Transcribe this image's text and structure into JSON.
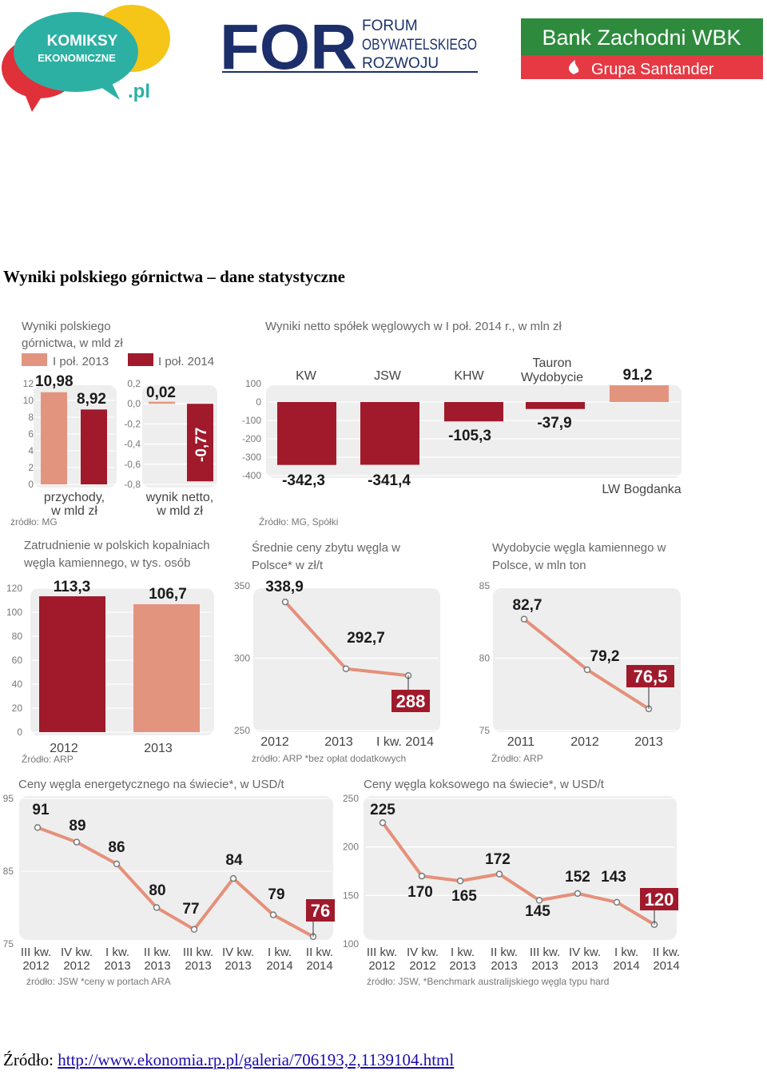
{
  "logos": {
    "komiksy": {
      "line1": "KOMIKSY",
      "line2": "EKONOMICZNE",
      "suffix": ".pl"
    },
    "forum": {
      "mark": "FOR",
      "line1": "FORUM",
      "line2": "OBYWATELSKIEGO",
      "line3": "ROZWOJU"
    },
    "bank": {
      "name": "Bank Zachodni WBK",
      "sub": "Grupa Santander",
      "color_top": "#2e8b3e",
      "color_bottom": "#e53a44"
    }
  },
  "page_title": "Wyniki polskiego górnictwa – dane statystyczne",
  "source_prefix": "Źródło: ",
  "source_url": "http://www.ekonomia.rp.pl/galeria/706193,2,1139104.html",
  "colors": {
    "dark": "#a01a2c",
    "light": "#e3947f",
    "panel": "#eeeeee",
    "line": "#e5907a"
  },
  "chart_data": [
    {
      "type": "bar",
      "title": "Wyniki polskiego górnictwa, w mld zł",
      "legend": [
        "I poł. 2013",
        "I poł. 2014"
      ],
      "source": "żródło: MG",
      "subcharts": [
        {
          "label": "przychody, w mld zł",
          "ylim": [
            0,
            12
          ],
          "ticks": [
            "12",
            "10",
            "8",
            "6",
            "4",
            "2",
            "0"
          ],
          "values": [
            10.98,
            8.92
          ],
          "value_labels": [
            "10,98",
            "8,92"
          ]
        },
        {
          "label": "wynik netto, w mld zł",
          "ylim": [
            -0.8,
            0.2
          ],
          "ticks": [
            "0,2",
            "0,0",
            "-0,2",
            "-0,4",
            "-0,6",
            "-0,8"
          ],
          "values": [
            0.02,
            -0.77
          ],
          "value_labels": [
            "0,02",
            "-0,77"
          ]
        }
      ]
    },
    {
      "type": "bar",
      "title": "Wyniki netto spółek węglowych w I poł. 2014 r., w mln zł",
      "categories": [
        "KW",
        "JSW",
        "KHW",
        "Tauron Wydobycie",
        "LW Bogdanka"
      ],
      "values": [
        -342.3,
        -341.4,
        -105.3,
        -37.9,
        91.2
      ],
      "value_labels": [
        "-342,3",
        "-341,4",
        "-105,3",
        "-37,9",
        "91,2"
      ],
      "ylim": [
        -400,
        100
      ],
      "ticks": [
        "100",
        "0",
        "-100",
        "-200",
        "-300",
        "-400"
      ],
      "source": "Źródło: MG, Spółki"
    },
    {
      "type": "bar",
      "title": "Zatrudnienie w polskich kopalniach węgla kamiennego, w tys. osób",
      "categories": [
        "2012",
        "2013"
      ],
      "values": [
        113.3,
        106.7
      ],
      "value_labels": [
        "113,3",
        "106,7"
      ],
      "ylim": [
        0,
        120
      ],
      "ticks": [
        "120",
        "100",
        "80",
        "60",
        "40",
        "20",
        "0"
      ],
      "source": "Źródło: ARP"
    },
    {
      "type": "line",
      "title": "Średnie ceny zbytu węgla w Polsce* w zł/t",
      "categories": [
        "2012",
        "2013",
        "I kw. 2014"
      ],
      "values": [
        338.9,
        292.7,
        288
      ],
      "value_labels": [
        "338,9",
        "292,7",
        "288"
      ],
      "ylim": [
        250,
        350
      ],
      "ticks": [
        "350",
        "300",
        "250"
      ],
      "source": "żródło: ARP *bez opłat dodatkowych"
    },
    {
      "type": "line",
      "title": "Wydobycie węgla kamiennego w Polsce, w mln ton",
      "categories": [
        "2011",
        "2012",
        "2013"
      ],
      "values": [
        82.7,
        79.2,
        76.5
      ],
      "value_labels": [
        "82,7",
        "79,2",
        "76,5"
      ],
      "ylim": [
        75,
        85
      ],
      "ticks": [
        "85",
        "80",
        "75"
      ],
      "source": "Żródło: ARP"
    },
    {
      "type": "line",
      "title": "Ceny węgla energetycznego na świecie*, w USD/t",
      "categories": [
        [
          "III kw.",
          "2012"
        ],
        [
          "IV kw.",
          "2012"
        ],
        [
          "I kw.",
          "2013"
        ],
        [
          "II kw.",
          "2013"
        ],
        [
          "III kw.",
          "2013"
        ],
        [
          "IV kw.",
          "2013"
        ],
        [
          "I kw.",
          "2014"
        ],
        [
          "II kw.",
          "2014"
        ]
      ],
      "values": [
        91,
        89,
        86,
        80,
        77,
        84,
        79,
        76
      ],
      "value_labels": [
        "91",
        "89",
        "86",
        "80",
        "77",
        "84",
        "79",
        "76"
      ],
      "ylim": [
        75,
        95
      ],
      "ticks": [
        "95",
        "85",
        "75"
      ],
      "source": "źródło: JSW *ceny w portach ARA"
    },
    {
      "type": "line",
      "title": "Ceny węgla koksowego na świecie*, w USD/t",
      "categories": [
        [
          "III kw.",
          "2012"
        ],
        [
          "IV kw.",
          "2012"
        ],
        [
          "I kw.",
          "2013"
        ],
        [
          "II kw.",
          "2013"
        ],
        [
          "III kw.",
          "2013"
        ],
        [
          "IV kw.",
          "2013"
        ],
        [
          "I kw.",
          "2014"
        ],
        [
          "II kw.",
          "2014"
        ]
      ],
      "values": [
        225,
        170,
        165,
        172,
        145,
        152,
        143,
        120
      ],
      "value_labels": [
        "225",
        "170",
        "165",
        "172",
        "145",
        "152",
        "143",
        "120"
      ],
      "ylim": [
        100,
        250
      ],
      "ticks": [
        "250",
        "200",
        "150",
        "100"
      ],
      "source": "źródło: JSW, *Benchmark australijskiego węgla typu hard"
    }
  ]
}
